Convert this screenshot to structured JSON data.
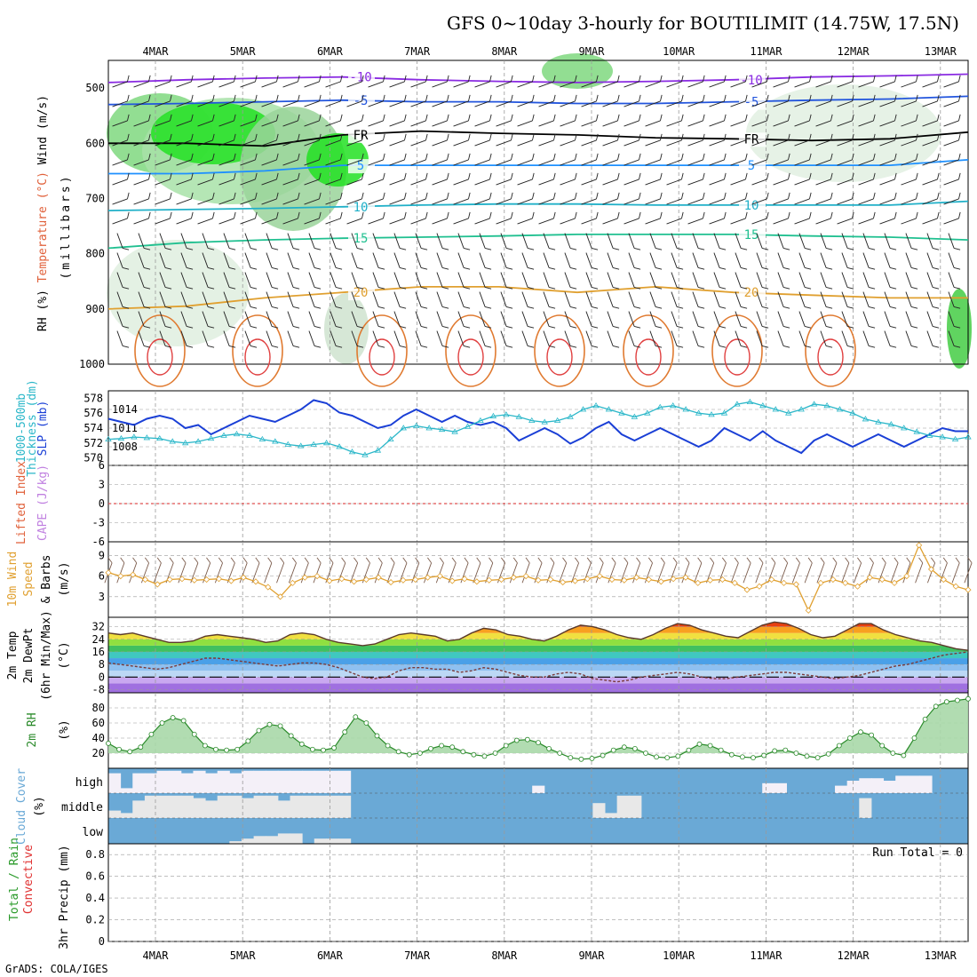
{
  "title": "GFS 0~10day 3-hourly for BOUTILIMIT (14.75W, 17.5N)",
  "footer": "GrADS: COLA/IGES",
  "chart_data": {
    "type": "meteogram",
    "dates": [
      "4MAR",
      "5MAR",
      "6MAR",
      "7MAR",
      "8MAR",
      "9MAR",
      "10MAR",
      "11MAR",
      "12MAR",
      "13MAR"
    ],
    "colors": {
      "frame": "#000000",
      "grid": "#9a9a9a",
      "slp": "#1a3fd6",
      "thickness": "#2bb7c9",
      "wind_speed": "#e0a030",
      "temp_line": "#5a3a2a",
      "cloud_fill": "#6aa9d6",
      "cloud_clear": "#e8e8e8",
      "rh_fill": "#a8d8a8",
      "rh_line": "#2a8a2a"
    },
    "panels": [
      {
        "id": "upper_air",
        "labels": [
          {
            "text": "Wind (m/s)",
            "color": "#000000"
          },
          {
            "text": "Temperature (°C)",
            "color": "#e0603a"
          },
          {
            "text": "RH (%)",
            "color": "#000000"
          },
          {
            "text": "(millibars)",
            "color": "#000000"
          }
        ],
        "yticks": [
          "500",
          "600",
          "700",
          "800",
          "900",
          "1000"
        ],
        "ylim": [
          450,
          1000
        ],
        "isotherms": [
          {
            "label": "-10",
            "color": "#8a2be2",
            "p": [
              490,
              485,
              482,
              480,
              485,
              488,
              490,
              488,
              485,
              480,
              478,
              475
            ]
          },
          {
            "label": "-5",
            "color": "#2255dd",
            "p": [
              530,
              528,
              525,
              522,
              525,
              525,
              528,
              528,
              525,
              522,
              520,
              515
            ]
          },
          {
            "label": "FR",
            "color": "#000000",
            "p": [
              600,
              600,
              605,
              585,
              578,
              582,
              585,
              590,
              592,
              595,
              592,
              580
            ]
          },
          {
            "label": "5",
            "color": "#1e90ff",
            "p": [
              655,
              655,
              650,
              640,
              640,
              640,
              640,
              640,
              640,
              640,
              640,
              630
            ]
          },
          {
            "label": "10",
            "color": "#20b0c8",
            "p": [
              722,
              720,
              718,
              715,
              712,
              710,
              710,
              712,
              712,
              712,
              712,
              705
            ]
          },
          {
            "label": "15",
            "color": "#20c090",
            "p": [
              790,
              780,
              775,
              772,
              770,
              768,
              765,
              765,
              765,
              768,
              770,
              775
            ]
          },
          {
            "label": "20",
            "color": "#e0a030",
            "p": [
              900,
              895,
              880,
              870,
              860,
              860,
              870,
              860,
              870,
              875,
              880,
              880
            ]
          }
        ]
      },
      {
        "id": "slp_thickness",
        "labels": [
          {
            "text": "1000-500mb",
            "color": "#2bb7c9"
          },
          {
            "text": "Thickness (dm)",
            "color": "#2bb7c9"
          },
          {
            "text": "SLP (mb)",
            "color": "#1a3fd6"
          }
        ],
        "yticks_left": [
          "570",
          "572",
          "574",
          "576",
          "578"
        ],
        "ylim_left": [
          569,
          579
        ],
        "yticks_right": [
          "1008",
          "1011",
          "1014"
        ],
        "ylim_right": [
          1005,
          1017
        ],
        "slp": [
          1012.5,
          1012,
          1011.5,
          1012.5,
          1013,
          1012.5,
          1011,
          1011.5,
          1010,
          1011,
          1012,
          1013,
          1012.5,
          1012,
          1013,
          1014,
          1015.5,
          1015,
          1013.5,
          1013,
          1012,
          1011,
          1011.5,
          1013,
          1014,
          1013,
          1012,
          1013,
          1012,
          1011.5,
          1012,
          1011,
          1009,
          1010,
          1011,
          1010,
          1008.5,
          1009.5,
          1011,
          1012,
          1010,
          1009,
          1010,
          1011,
          1010,
          1009,
          1008,
          1009,
          1011,
          1010,
          1009,
          1010.5,
          1009,
          1008,
          1007,
          1009,
          1010,
          1009,
          1008,
          1009,
          1010,
          1009,
          1008,
          1009,
          1010,
          1011,
          1010.5,
          1010.5
        ],
        "thickness": [
          572.5,
          572.6,
          572.8,
          572.7,
          572.6,
          572.2,
          572.0,
          572.2,
          572.6,
          573.0,
          573.2,
          573.0,
          572.5,
          572.2,
          571.8,
          571.6,
          571.8,
          572.0,
          571.5,
          570.8,
          570.4,
          571.0,
          572.5,
          574.0,
          574.3,
          574.0,
          573.8,
          573.5,
          574.2,
          575.0,
          575.6,
          575.8,
          575.5,
          575.0,
          574.8,
          575.0,
          575.5,
          576.5,
          577.0,
          576.5,
          576.0,
          575.5,
          576.0,
          576.8,
          577.0,
          576.5,
          576.0,
          575.8,
          576.0,
          577.2,
          577.5,
          577.0,
          576.5,
          576.0,
          576.5,
          577.2,
          577.0,
          576.5,
          576.0,
          575.2,
          574.8,
          574.5,
          574.0,
          573.5,
          573.0,
          572.8,
          572.5,
          572.8
        ]
      },
      {
        "id": "cape_li",
        "labels": [
          {
            "text": "Lifted Index",
            "color": "#e0603a"
          },
          {
            "text": "CAPE (J/kg)",
            "color": "#c080e0"
          }
        ],
        "yticks": [
          "6",
          "3",
          "0",
          "-3",
          "-6"
        ],
        "ylim": [
          -6,
          6
        ],
        "zero_line_color": "#e05050"
      },
      {
        "id": "wind10m",
        "labels": [
          {
            "text": "10m Wind",
            "color": "#e0a030"
          },
          {
            "text": "Speed",
            "color": "#e0a030"
          },
          {
            "text": "& Barbs",
            "color": "#000000"
          },
          {
            "text": "(m/s)",
            "color": "#000000"
          }
        ],
        "yticks": [
          "3",
          "6",
          "9"
        ],
        "ylim": [
          0,
          11
        ],
        "speed": [
          6.5,
          6.0,
          6.2,
          5.5,
          4.8,
          5.5,
          5.6,
          5.4,
          5.5,
          5.6,
          5.3,
          5.8,
          5.2,
          4.4,
          3.0,
          5.0,
          5.8,
          6.0,
          5.3,
          5.6,
          5.2,
          5.5,
          5.8,
          5.1,
          5.4,
          5.5,
          5.8,
          6.0,
          5.3,
          5.6,
          5.2,
          5.4,
          5.5,
          5.8,
          6.0,
          5.4,
          5.5,
          5.1,
          5.3,
          5.6,
          6.0,
          5.5,
          5.4,
          5.8,
          5.5,
          5.2,
          5.6,
          5.8,
          5.0,
          5.4,
          5.5,
          5.0,
          4.0,
          4.5,
          5.5,
          5.0,
          4.8,
          1.0,
          5.0,
          5.5,
          5.0,
          4.5,
          5.8,
          5.5,
          5.0,
          6.0,
          10.5,
          7.0,
          5.5,
          4.5,
          4.0
        ]
      },
      {
        "id": "temp2m",
        "labels": [
          {
            "text": "2m Temp",
            "color": "#000000"
          },
          {
            "text": "2m DewPt",
            "color": "#000000"
          },
          {
            "text": "(6hr Min/Max)",
            "color": "#000000"
          },
          {
            "text": "(°C)",
            "color": "#000000"
          }
        ],
        "yticks": [
          "-8",
          "0",
          "8",
          "16",
          "24",
          "32"
        ],
        "ylim": [
          -10,
          38
        ],
        "temp": [
          28,
          27,
          28,
          26,
          24,
          22,
          22,
          23,
          26,
          27,
          26,
          25,
          24,
          22,
          23,
          27,
          28,
          27,
          24,
          22,
          21,
          20,
          21,
          24,
          27,
          28,
          27,
          26,
          23,
          24,
          28,
          31,
          30,
          27,
          26,
          24,
          23,
          26,
          30,
          33,
          32,
          30,
          27,
          25,
          24,
          27,
          31,
          34,
          33,
          30,
          28,
          26,
          25,
          29,
          33,
          35,
          34,
          31,
          27,
          25,
          26,
          30,
          34,
          34,
          30,
          27,
          25,
          23,
          22,
          20,
          18,
          17
        ],
        "dewpt": [
          9,
          8,
          7,
          6,
          5,
          6,
          8,
          10,
          12,
          12,
          11,
          10,
          9,
          8,
          7,
          8,
          9,
          9,
          8,
          6,
          3,
          0,
          -1,
          0,
          4,
          6,
          6,
          5,
          5,
          3,
          4,
          6,
          5,
          3,
          1,
          0,
          0,
          2,
          3,
          2,
          -1,
          -2,
          -3,
          -2,
          0,
          1,
          2,
          3,
          2,
          0,
          -1,
          -1,
          0,
          1,
          2,
          3,
          3,
          2,
          1,
          0,
          -1,
          0,
          1,
          3,
          5,
          7,
          8,
          10,
          12,
          14,
          15,
          16
        ]
      },
      {
        "id": "rh2m",
        "labels": [
          {
            "text": "2m RH",
            "color": "#2a8a2a"
          },
          {
            "text": "(%)",
            "color": "#000000"
          }
        ],
        "yticks": [
          "20",
          "40",
          "60",
          "80"
        ],
        "ylim": [
          0,
          100
        ],
        "rh": [
          33,
          25,
          22,
          28,
          45,
          60,
          67,
          63,
          45,
          30,
          25,
          24,
          25,
          36,
          50,
          58,
          56,
          43,
          32,
          25,
          24,
          27,
          48,
          68,
          60,
          43,
          30,
          22,
          18,
          20,
          26,
          30,
          28,
          22,
          18,
          16,
          20,
          30,
          37,
          38,
          34,
          26,
          20,
          14,
          12,
          13,
          17,
          24,
          28,
          26,
          20,
          15,
          14,
          16,
          24,
          32,
          30,
          24,
          18,
          15,
          14,
          17,
          23,
          24,
          20,
          16,
          14,
          19,
          30,
          40,
          48,
          44,
          30,
          20,
          17,
          40,
          65,
          82,
          88,
          90,
          92
        ]
      },
      {
        "id": "cloud",
        "labels": [
          {
            "text": "Cloud Cover",
            "color": "#6aa9d6"
          },
          {
            "text": "(%)",
            "color": "#000000"
          }
        ],
        "levels": [
          "high",
          "middle",
          "low"
        ],
        "high": [
          0.8,
          0.2,
          0.8,
          0.8,
          0.9,
          0.9,
          0.8,
          0.9,
          0.8,
          0.9,
          0.8,
          0.9,
          0.9,
          0.9,
          0.9,
          0.9,
          0.9,
          0.9,
          0.9,
          0.9,
          0,
          0,
          0,
          0,
          0,
          0,
          0,
          0,
          0,
          0,
          0,
          0,
          0,
          0,
          0,
          0.3,
          0,
          0,
          0,
          0,
          0,
          0,
          0,
          0,
          0,
          0,
          0,
          0,
          0,
          0,
          0,
          0,
          0,
          0,
          0.4,
          0.4,
          0,
          0,
          0,
          0,
          0.3,
          0.5,
          0.6,
          0.6,
          0.5,
          0.7,
          0.7,
          0.7,
          0,
          0,
          0
        ],
        "middle": [
          0.3,
          0.2,
          0.7,
          0.9,
          0.9,
          0.9,
          0.9,
          0.8,
          0.7,
          0.9,
          0.9,
          0.8,
          0.9,
          0.9,
          0.7,
          0.9,
          0.9,
          0.9,
          0.9,
          0.9,
          0,
          0,
          0,
          0,
          0,
          0,
          0,
          0,
          0,
          0,
          0,
          0,
          0,
          0,
          0,
          0,
          0,
          0,
          0,
          0,
          0.6,
          0.2,
          0.9,
          0.9,
          0,
          0,
          0,
          0,
          0,
          0,
          0,
          0,
          0,
          0,
          0,
          0,
          0,
          0,
          0,
          0,
          0,
          0,
          0.8,
          0,
          0,
          0,
          0,
          0,
          0,
          0,
          0
        ],
        "low": [
          0,
          0,
          0,
          0,
          0,
          0,
          0,
          0,
          0,
          0,
          0.1,
          0.2,
          0.3,
          0.3,
          0.4,
          0.4,
          0,
          0.2,
          0.2,
          0.2,
          0,
          0,
          0,
          0,
          0,
          0,
          0,
          0,
          0,
          0,
          0,
          0,
          0,
          0,
          0,
          0,
          0,
          0,
          0,
          0,
          0,
          0,
          0,
          0,
          0,
          0,
          0,
          0,
          0,
          0,
          0,
          0,
          0,
          0,
          0,
          0,
          0,
          0,
          0,
          0,
          0,
          0,
          0,
          0,
          0,
          0,
          0,
          0,
          0,
          0,
          0
        ]
      },
      {
        "id": "precip",
        "labels": [
          {
            "text": "Total / Rain",
            "color": "#2a9a2a"
          },
          {
            "text": "Convective",
            "color": "#e03030"
          },
          {
            "text": "3hr Precip (mm)",
            "color": "#000000"
          }
        ],
        "yticks": [
          "0",
          "0.2",
          "0.4",
          "0.6",
          "0.8"
        ],
        "ylim": [
          0,
          0.9
        ],
        "run_total": "Run Total = 0"
      }
    ]
  }
}
